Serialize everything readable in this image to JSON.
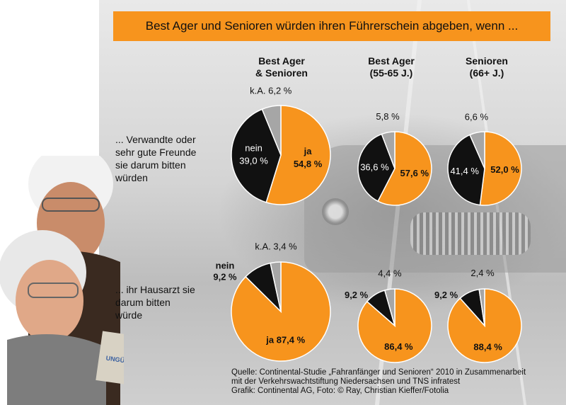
{
  "title": "Best Ager und Senioren würden ihren Führerschein abgeben, wenn ...",
  "columns": [
    {
      "line1": "Best Ager",
      "line2": "& Senioren"
    },
    {
      "line1": "Best Ager",
      "line2": "(55-65 J.)"
    },
    {
      "line1": "Senioren",
      "line2": "(66+ J.)"
    }
  ],
  "rows": [
    {
      "line1": "... Verwandte oder",
      "line2": "sehr gute Freunde",
      "line3": "sie darum bitten",
      "line4": "würden"
    },
    {
      "line1": "... ihr Hausarzt sie",
      "line2": "darum bitten",
      "line3": "würde"
    }
  ],
  "footer": {
    "line1": "Quelle: Continental-Studie „Fahranfänger und Senioren“ 2010 in Zusammenarbeit",
    "line2": "mit der Verkehrswachtstiftung Niedersachsen und TNS infratest",
    "line3": "Grafik: Continental AG, Foto: © Ray, Christian Kieffer/Fotolia"
  },
  "colors": {
    "ja": "#f7941d",
    "nein": "#111111",
    "ka": "#a6a6a6"
  },
  "chart_data": {
    "type": "pie",
    "pies": [
      {
        "row": 0,
        "col": 0,
        "slices": [
          {
            "category": "ja",
            "value": 54.8,
            "label": "54,8 %",
            "name": "ja"
          },
          {
            "category": "nein",
            "value": 39.0,
            "label": "39,0 %",
            "name": "nein"
          },
          {
            "category": "ka",
            "value": 6.2,
            "label": "6,2 %",
            "name": "k.A."
          }
        ]
      },
      {
        "row": 0,
        "col": 1,
        "slices": [
          {
            "category": "ja",
            "value": 57.6,
            "label": "57,6 %",
            "name": ""
          },
          {
            "category": "nein",
            "value": 36.6,
            "label": "36,6 %",
            "name": ""
          },
          {
            "category": "ka",
            "value": 5.8,
            "label": "5,8 %",
            "name": ""
          }
        ]
      },
      {
        "row": 0,
        "col": 2,
        "slices": [
          {
            "category": "ja",
            "value": 52.0,
            "label": "52,0 %",
            "name": ""
          },
          {
            "category": "nein",
            "value": 41.4,
            "label": "41,4 %",
            "name": ""
          },
          {
            "category": "ka",
            "value": 6.6,
            "label": "6,6 %",
            "name": ""
          }
        ]
      },
      {
        "row": 1,
        "col": 0,
        "slices": [
          {
            "category": "ja",
            "value": 87.4,
            "label": "87,4 %",
            "name": "ja"
          },
          {
            "category": "nein",
            "value": 9.2,
            "label": "9,2 %",
            "name": "nein"
          },
          {
            "category": "ka",
            "value": 3.4,
            "label": "3,4 %",
            "name": "k.A."
          }
        ]
      },
      {
        "row": 1,
        "col": 1,
        "slices": [
          {
            "category": "ja",
            "value": 86.4,
            "label": "86,4 %",
            "name": ""
          },
          {
            "category": "nein",
            "value": 9.2,
            "label": "9,2 %",
            "name": ""
          },
          {
            "category": "ka",
            "value": 4.4,
            "label": "4,4 %",
            "name": ""
          }
        ]
      },
      {
        "row": 1,
        "col": 2,
        "slices": [
          {
            "category": "ja",
            "value": 88.4,
            "label": "88,4 %",
            "name": ""
          },
          {
            "category": "nein",
            "value": 9.2,
            "label": "9,2 %",
            "name": ""
          },
          {
            "category": "ka",
            "value": 2.4,
            "label": "2,4 %",
            "name": ""
          }
        ]
      }
    ]
  }
}
